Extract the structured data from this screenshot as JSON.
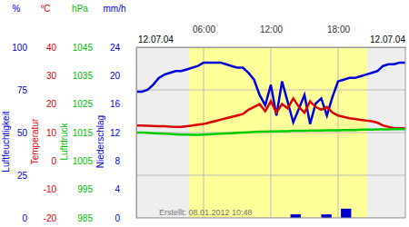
{
  "chart_data": {
    "type": "line",
    "dates": [
      "12.07.04",
      "12.07.04"
    ],
    "annotation": "Erstellt: 08.01.2012 10:48",
    "x": [
      0,
      0.5,
      1,
      1.5,
      2,
      2.5,
      3,
      3.5,
      4,
      4.5,
      5,
      5.5,
      6,
      6.5,
      7,
      7.5,
      8,
      8.5,
      9,
      9.5,
      10,
      10.5,
      11,
      11.5,
      12,
      12.5,
      13,
      13.5,
      14,
      14.5,
      15,
      15.5,
      16,
      16.5,
      17,
      17.5,
      18,
      18.5,
      19,
      19.5,
      20,
      20.5,
      21,
      21.5,
      22,
      22.5,
      23,
      23.5,
      24
    ],
    "xlim": [
      0,
      24
    ],
    "xticks": [
      {
        "value": 6,
        "label": "06:00"
      },
      {
        "value": 12,
        "label": "12:00"
      },
      {
        "value": 18,
        "label": "18:00"
      }
    ],
    "daylight": [
      4.7,
      20.6
    ],
    "grid": true,
    "axes": [
      {
        "unit": "%",
        "title": "Luftfeuchtigkeit",
        "color": "#0000dd",
        "lim": [
          0,
          100
        ],
        "ticks": [
          0,
          25,
          50,
          75,
          100
        ]
      },
      {
        "unit": "°C",
        "title": "Temperatur",
        "color": "#dd0000",
        "lim": [
          -20,
          40
        ],
        "ticks": [
          -20,
          -10,
          0,
          10,
          20,
          30,
          40
        ]
      },
      {
        "unit": "hPa",
        "title": "Luftdruck",
        "color": "#00bb00",
        "lim": [
          985,
          1045
        ],
        "ticks": [
          985,
          995,
          1005,
          1015,
          1025,
          1035,
          1045
        ]
      },
      {
        "unit": "mm/h",
        "title": "Niederschlag",
        "color": "#0000dd",
        "lim": [
          0,
          24
        ],
        "ticks": [
          0,
          4,
          8,
          12,
          16,
          20,
          24
        ]
      }
    ],
    "series": [
      {
        "axis": 0,
        "color": "#0000dd",
        "values": [
          74,
          74,
          75,
          78,
          82,
          84,
          85,
          86,
          86,
          87,
          88,
          89,
          91,
          91,
          91,
          91,
          90,
          89,
          88,
          88,
          85,
          81,
          72,
          66,
          78,
          60,
          80,
          68,
          56,
          64,
          72,
          55,
          67,
          70,
          60,
          71,
          80,
          81,
          82,
          82,
          83,
          84,
          85,
          86,
          89,
          90,
          90,
          91,
          91
        ]
      },
      {
        "axis": 1,
        "color": "#dd0000",
        "values": [
          12.5,
          12.5,
          12.4,
          12.3,
          12.2,
          12.2,
          12.1,
          12.0,
          12.0,
          12.2,
          12.5,
          12.8,
          13.0,
          13.5,
          14.0,
          14.5,
          15.0,
          15.5,
          16.0,
          16.5,
          18.0,
          19.0,
          20.0,
          17.5,
          21.0,
          17.0,
          20.0,
          18.5,
          22.0,
          19.0,
          17.0,
          21.0,
          19.0,
          18.0,
          19.0,
          17.0,
          16.0,
          15.5,
          15.0,
          14.8,
          14.5,
          14.2,
          14.0,
          13.5,
          12.5,
          12.0,
          11.5,
          11.5,
          11.5
        ]
      },
      {
        "axis": 2,
        "color": "#00cc00",
        "values": [
          1015.0,
          1015.0,
          1014.9,
          1014.8,
          1014.7,
          1014.6,
          1014.5,
          1014.4,
          1014.3,
          1014.3,
          1014.2,
          1014.2,
          1014.3,
          1014.4,
          1014.5,
          1014.6,
          1014.7,
          1014.8,
          1014.9,
          1015.0,
          1015.1,
          1015.2,
          1015.3,
          1015.3,
          1015.4,
          1015.4,
          1015.5,
          1015.5,
          1015.6,
          1015.6,
          1015.6,
          1015.7,
          1015.7,
          1015.7,
          1015.8,
          1015.8,
          1015.8,
          1015.9,
          1015.9,
          1015.9,
          1016.0,
          1016.0,
          1016.0,
          1016.1,
          1016.1,
          1016.1,
          1016.2,
          1016.2,
          1016.2
        ]
      },
      {
        "axis": 3,
        "type": "bar",
        "color": "#0000cc",
        "x": [
          13.75,
          16.5,
          18.25
        ],
        "values": [
          0.5,
          0.5,
          1.3
        ]
      }
    ]
  }
}
